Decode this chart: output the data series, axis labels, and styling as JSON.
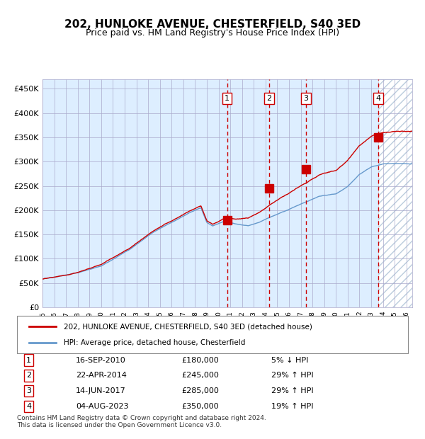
{
  "title": "202, HUNLOKE AVENUE, CHESTERFIELD, S40 3ED",
  "subtitle": "Price paid vs. HM Land Registry's House Price Index (HPI)",
  "ylabel_ticks": [
    "£0",
    "£50K",
    "£100K",
    "£150K",
    "£200K",
    "£250K",
    "£300K",
    "£350K",
    "£400K",
    "£450K"
  ],
  "ytick_values": [
    0,
    50000,
    100000,
    150000,
    200000,
    250000,
    300000,
    350000,
    400000,
    450000
  ],
  "ylim": [
    0,
    470000
  ],
  "xlim_start": 1995.0,
  "xlim_end": 2026.5,
  "hpi_color": "#6699cc",
  "price_color": "#cc0000",
  "bg_plot_color": "#ddeeff",
  "bg_hatch_color": "#bbccdd",
  "sale_dates_year": [
    2010.72,
    2014.31,
    2017.45,
    2023.59
  ],
  "sale_prices": [
    180000,
    245000,
    285000,
    350000
  ],
  "sale_labels": [
    "1",
    "2",
    "3",
    "4"
  ],
  "sale_date_strs": [
    "16-SEP-2010",
    "22-APR-2014",
    "14-JUN-2017",
    "04-AUG-2023"
  ],
  "sale_price_strs": [
    "£180,000",
    "£245,000",
    "£285,000",
    "£350,000"
  ],
  "sale_hpi_strs": [
    "5% ↓ HPI",
    "29% ↑ HPI",
    "29% ↑ HPI",
    "19% ↑ HPI"
  ],
  "legend_label_red": "202, HUNLOKE AVENUE, CHESTERFIELD, S40 3ED (detached house)",
  "legend_label_blue": "HPI: Average price, detached house, Chesterfield",
  "footnote": "Contains HM Land Registry data © Crown copyright and database right 2024.\nThis data is licensed under the Open Government Licence v3.0.",
  "last_sale_year": 2023.59
}
